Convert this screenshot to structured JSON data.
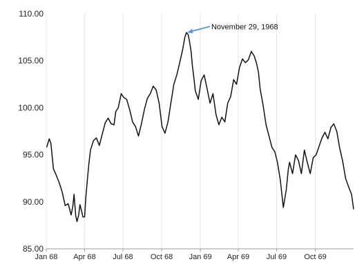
{
  "chart_data": {
    "type": "line",
    "title": "",
    "xlabel": "",
    "ylabel": "",
    "ylim": [
      85,
      110
    ],
    "y_ticks": [
      "85.00",
      "90.00",
      "95.00",
      "100.00",
      "105.00",
      "110.00"
    ],
    "x_ticks": [
      "Jan 68",
      "Apr 68",
      "Jul 68",
      "Oct 68",
      "Jan 69",
      "Apr 69",
      "Jul 69",
      "Oct 69"
    ],
    "x_range": [
      "1968-01-01",
      "1969-12-31"
    ],
    "grid": "vertical gridlines at month-tick positions",
    "line_color": "#111111",
    "annotation": {
      "text": "November 29, 1968",
      "date": "1968-11-29",
      "value": 108.0,
      "arrow_color": "#5B9BD5"
    },
    "series": [
      {
        "x": [
          "1968-01-02",
          "1968-01-08",
          "1968-01-12",
          "1968-01-18",
          "1968-01-25",
          "1968-02-01",
          "1968-02-08",
          "1968-02-15",
          "1968-02-22",
          "1968-02-29",
          "1968-03-04",
          "1968-03-07",
          "1968-03-11",
          "1968-03-14",
          "1968-03-18",
          "1968-03-21",
          "1968-03-25",
          "1968-03-28",
          "1968-04-01",
          "1968-04-04",
          "1968-04-08",
          "1968-04-11",
          "1968-04-15",
          "1968-04-22",
          "1968-04-29",
          "1968-05-06",
          "1968-05-13",
          "1968-05-20",
          "1968-05-27",
          "1968-06-03",
          "1968-06-10",
          "1968-06-14",
          "1968-06-20",
          "1968-06-27",
          "1968-07-03",
          "1968-07-10",
          "1968-07-17",
          "1968-07-24",
          "1968-07-31",
          "1968-08-07",
          "1968-08-14",
          "1968-08-21",
          "1968-08-28",
          "1968-09-04",
          "1968-09-11",
          "1968-09-18",
          "1968-09-25",
          "1968-10-02",
          "1968-10-09",
          "1968-10-16",
          "1968-10-23",
          "1968-10-30",
          "1968-11-06",
          "1968-11-13",
          "1968-11-20",
          "1968-11-25",
          "1968-11-29",
          "1968-12-03",
          "1968-12-06",
          "1968-12-10",
          "1968-12-13",
          "1968-12-17",
          "1968-12-20",
          "1968-12-27",
          "1969-01-03",
          "1969-01-10",
          "1969-01-17",
          "1969-01-24",
          "1969-01-31",
          "1969-02-07",
          "1969-02-14",
          "1969-02-21",
          "1969-02-28",
          "1969-03-07",
          "1969-03-14",
          "1969-03-21",
          "1969-03-28",
          "1969-04-04",
          "1969-04-11",
          "1969-04-18",
          "1969-04-25",
          "1969-05-02",
          "1969-05-09",
          "1969-05-14",
          "1969-05-19",
          "1969-05-23",
          "1969-05-30",
          "1969-06-06",
          "1969-06-13",
          "1969-06-20",
          "1969-06-27",
          "1969-07-03",
          "1969-07-10",
          "1969-07-17",
          "1969-07-24",
          "1969-07-29",
          "1969-08-01",
          "1969-08-08",
          "1969-08-15",
          "1969-08-22",
          "1969-08-29",
          "1969-09-05",
          "1969-09-12",
          "1969-09-19",
          "1969-09-26",
          "1969-10-03",
          "1969-10-10",
          "1969-10-17",
          "1969-10-24",
          "1969-10-31",
          "1969-11-07",
          "1969-11-14",
          "1969-11-21",
          "1969-11-28",
          "1969-12-05",
          "1969-12-12",
          "1969-12-19",
          "1969-12-26",
          "1969-12-31"
        ],
        "y": [
          95.8,
          96.7,
          96.2,
          93.5,
          92.8,
          92.0,
          91.0,
          89.6,
          89.8,
          88.6,
          89.5,
          90.8,
          88.5,
          87.9,
          88.6,
          89.7,
          89.0,
          88.4,
          88.4,
          90.5,
          92.5,
          94.0,
          95.5,
          96.5,
          96.8,
          96.0,
          97.2,
          98.4,
          98.9,
          98.3,
          98.2,
          99.6,
          100.0,
          101.5,
          101.1,
          100.9,
          99.8,
          98.5,
          98.0,
          97.0,
          98.3,
          99.8,
          101.0,
          101.5,
          102.3,
          101.9,
          100.5,
          98.0,
          97.3,
          98.5,
          100.5,
          102.5,
          103.5,
          104.8,
          106.2,
          107.5,
          108.0,
          107.8,
          107.1,
          106.0,
          104.5,
          103.0,
          101.8,
          100.9,
          102.9,
          103.5,
          102.0,
          100.5,
          101.5,
          99.3,
          98.2,
          99.0,
          98.5,
          100.5,
          101.2,
          103.0,
          102.5,
          104.3,
          105.2,
          104.8,
          105.1,
          106.0,
          105.5,
          104.8,
          103.8,
          102.0,
          100.3,
          98.2,
          97.0,
          95.8,
          95.3,
          94.2,
          92.3,
          89.4,
          91.3,
          93.5,
          94.2,
          93.0,
          95.0,
          94.4,
          93.0,
          95.5,
          94.2,
          93.0,
          94.7,
          95.0,
          95.9,
          96.8,
          97.4,
          96.7,
          97.9,
          98.3,
          97.5,
          95.7,
          94.3,
          92.5,
          91.6,
          90.8,
          89.2
        ]
      }
    ]
  }
}
